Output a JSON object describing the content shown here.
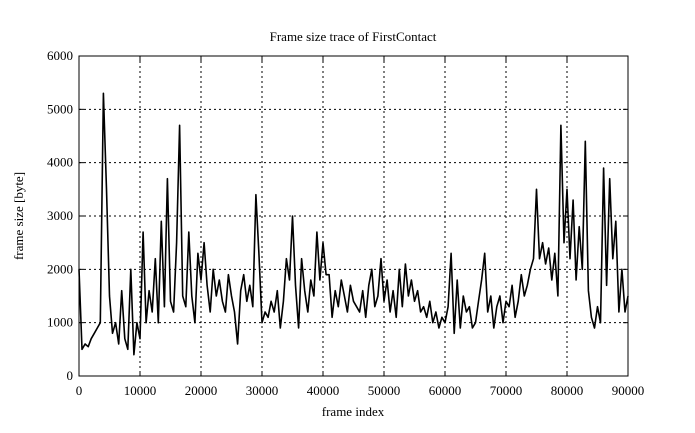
{
  "chart_data": {
    "type": "line",
    "title": "Frame size trace of FirstContact",
    "xlabel": "frame index",
    "ylabel": "frame size [byte]",
    "xlim": [
      0,
      90000
    ],
    "ylim": [
      0,
      6000
    ],
    "xticks": [
      0,
      10000,
      20000,
      30000,
      40000,
      50000,
      60000,
      70000,
      80000,
      90000
    ],
    "yticks": [
      0,
      1000,
      2000,
      3000,
      4000,
      5000,
      6000
    ],
    "grid": true,
    "line_color": "#000000",
    "x_step": 500,
    "y": [
      2000,
      500,
      600,
      550,
      700,
      800,
      900,
      1000,
      5300,
      3500,
      1500,
      800,
      1000,
      600,
      1600,
      700,
      500,
      2000,
      400,
      1000,
      700,
      2700,
      1000,
      1600,
      1200,
      2200,
      1000,
      2900,
      1300,
      3700,
      1400,
      1200,
      2500,
      4700,
      1500,
      1300,
      2700,
      1500,
      1000,
      2300,
      1800,
      2500,
      1700,
      1200,
      2000,
      1500,
      1800,
      1400,
      1200,
      1900,
      1500,
      1200,
      600,
      1600,
      1900,
      1400,
      1700,
      1300,
      3400,
      2300,
      1000,
      1200,
      1100,
      1400,
      1200,
      1600,
      900,
      1400,
      2200,
      1800,
      3000,
      1700,
      900,
      2200,
      1600,
      1200,
      1800,
      1500,
      2700,
      1800,
      2500,
      1900,
      1900,
      1100,
      1600,
      1300,
      1800,
      1500,
      1200,
      1700,
      1400,
      1300,
      1200,
      1600,
      1100,
      1700,
      2000,
      1300,
      1500,
      2200,
      1400,
      1800,
      1200,
      1600,
      1100,
      2000,
      1300,
      2100,
      1500,
      1800,
      1400,
      1600,
      1200,
      1300,
      1100,
      1400,
      1000,
      1200,
      900,
      1100,
      1000,
      1300,
      2300,
      800,
      1800,
      900,
      1500,
      1200,
      1300,
      900,
      1000,
      1400,
      1800,
      2300,
      1200,
      1500,
      900,
      1300,
      1500,
      1000,
      1400,
      1300,
      1700,
      1100,
      1400,
      1900,
      1500,
      1700,
      2000,
      2200,
      3500,
      2200,
      2500,
      2100,
      2400,
      1800,
      2300,
      1500,
      4700,
      2500,
      3500,
      2200,
      3300,
      1800,
      2800,
      2000,
      4400,
      1600,
      1100,
      900,
      1300,
      1000,
      3900,
      1700,
      3700,
      2200,
      2900,
      1200,
      2000,
      1200,
      1500
    ]
  }
}
